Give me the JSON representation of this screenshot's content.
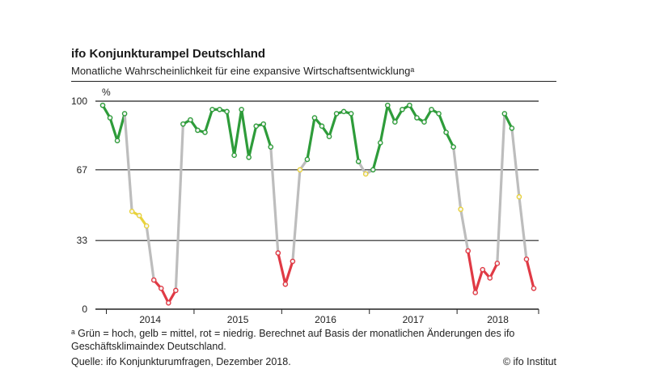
{
  "header": {
    "title": "ifo Konjunkturampel Deutschland",
    "subtitle": "Monatliche Wahrscheinlichkeit für eine expansive Wirtschaftsentwicklungᵃ"
  },
  "footer": {
    "footnote": "ᵃ Grün = hoch, gelb = mittel, rot = niedrig. Berechnet auf Basis der monatlichen Änderungen des ifo Geschäftsklimaindex Deutschland.",
    "source": "Quelle: ifo Konjunkturumfragen, Dezember 2018.",
    "copyright": "© ifo Institut"
  },
  "colors": {
    "green": "#2e9c3a",
    "yellow": "#e8d23c",
    "red": "#e03a45",
    "gray": "#bdbdbd"
  },
  "chart_data": {
    "type": "line",
    "title": "ifo Konjunkturampel Deutschland",
    "unit_label": "%",
    "ylim": [
      0,
      100
    ],
    "yticks": [
      0,
      33,
      67,
      100
    ],
    "x_range": [
      "2013-12",
      "2018-12"
    ],
    "year_labels": [
      "2014",
      "2015",
      "2016",
      "2017",
      "2018"
    ],
    "series": [
      {
        "name": "Wahrscheinlichkeit für eine expansive Wirtschaftsentwicklung",
        "values": [
          {
            "month": "2013-12",
            "value": 98,
            "level": "hoch"
          },
          {
            "month": "2014-01",
            "value": 92,
            "level": "hoch"
          },
          {
            "month": "2014-02",
            "value": 81,
            "level": "hoch"
          },
          {
            "month": "2014-03",
            "value": 94,
            "level": "hoch"
          },
          {
            "month": "2014-04",
            "value": 47,
            "level": "mittel"
          },
          {
            "month": "2014-05",
            "value": 45,
            "level": "mittel"
          },
          {
            "month": "2014-06",
            "value": 40,
            "level": "mittel"
          },
          {
            "month": "2014-07",
            "value": 14,
            "level": "niedrig"
          },
          {
            "month": "2014-08",
            "value": 10,
            "level": "niedrig"
          },
          {
            "month": "2014-09",
            "value": 3,
            "level": "niedrig"
          },
          {
            "month": "2014-10",
            "value": 9,
            "level": "niedrig"
          },
          {
            "month": "2014-11",
            "value": 89,
            "level": "hoch"
          },
          {
            "month": "2014-12",
            "value": 91,
            "level": "hoch"
          },
          {
            "month": "2015-01",
            "value": 86,
            "level": "hoch"
          },
          {
            "month": "2015-02",
            "value": 85,
            "level": "hoch"
          },
          {
            "month": "2015-03",
            "value": 96,
            "level": "hoch"
          },
          {
            "month": "2015-04",
            "value": 96,
            "level": "hoch"
          },
          {
            "month": "2015-05",
            "value": 95,
            "level": "hoch"
          },
          {
            "month": "2015-06",
            "value": 74,
            "level": "hoch"
          },
          {
            "month": "2015-07",
            "value": 96,
            "level": "hoch"
          },
          {
            "month": "2015-08",
            "value": 73,
            "level": "hoch"
          },
          {
            "month": "2015-09",
            "value": 88,
            "level": "hoch"
          },
          {
            "month": "2015-10",
            "value": 89,
            "level": "hoch"
          },
          {
            "month": "2015-11",
            "value": 78,
            "level": "hoch"
          },
          {
            "month": "2015-12",
            "value": 27,
            "level": "niedrig"
          },
          {
            "month": "2016-01",
            "value": 12,
            "level": "niedrig"
          },
          {
            "month": "2016-02",
            "value": 23,
            "level": "niedrig"
          },
          {
            "month": "2016-03",
            "value": 67,
            "level": "mittel"
          },
          {
            "month": "2016-04",
            "value": 72,
            "level": "hoch"
          },
          {
            "month": "2016-05",
            "value": 92,
            "level": "hoch"
          },
          {
            "month": "2016-06",
            "value": 88,
            "level": "hoch"
          },
          {
            "month": "2016-07",
            "value": 83,
            "level": "hoch"
          },
          {
            "month": "2016-08",
            "value": 94,
            "level": "hoch"
          },
          {
            "month": "2016-09",
            "value": 95,
            "level": "hoch"
          },
          {
            "month": "2016-10",
            "value": 94,
            "level": "hoch"
          },
          {
            "month": "2016-11",
            "value": 71,
            "level": "hoch"
          },
          {
            "month": "2016-12",
            "value": 65,
            "level": "mittel"
          },
          {
            "month": "2017-01",
            "value": 67,
            "level": "hoch"
          },
          {
            "month": "2017-02",
            "value": 80,
            "level": "hoch"
          },
          {
            "month": "2017-03",
            "value": 98,
            "level": "hoch"
          },
          {
            "month": "2017-04",
            "value": 90,
            "level": "hoch"
          },
          {
            "month": "2017-05",
            "value": 96,
            "level": "hoch"
          },
          {
            "month": "2017-06",
            "value": 98,
            "level": "hoch"
          },
          {
            "month": "2017-07",
            "value": 92,
            "level": "hoch"
          },
          {
            "month": "2017-08",
            "value": 90,
            "level": "hoch"
          },
          {
            "month": "2017-09",
            "value": 96,
            "level": "hoch"
          },
          {
            "month": "2017-10",
            "value": 94,
            "level": "hoch"
          },
          {
            "month": "2017-11",
            "value": 85,
            "level": "hoch"
          },
          {
            "month": "2017-12",
            "value": 78,
            "level": "hoch"
          },
          {
            "month": "2018-01",
            "value": 48,
            "level": "mittel"
          },
          {
            "month": "2018-02",
            "value": 28,
            "level": "niedrig"
          },
          {
            "month": "2018-03",
            "value": 8,
            "level": "niedrig"
          },
          {
            "month": "2018-04",
            "value": 19,
            "level": "niedrig"
          },
          {
            "month": "2018-05",
            "value": 15,
            "level": "niedrig"
          },
          {
            "month": "2018-06",
            "value": 22,
            "level": "niedrig"
          },
          {
            "month": "2018-07",
            "value": 94,
            "level": "hoch"
          },
          {
            "month": "2018-08",
            "value": 87,
            "level": "hoch"
          },
          {
            "month": "2018-09",
            "value": 54,
            "level": "mittel"
          },
          {
            "month": "2018-10",
            "value": 24,
            "level": "niedrig"
          },
          {
            "month": "2018-11",
            "value": 10,
            "level": "niedrig"
          }
        ]
      }
    ],
    "legend": "Grün = hoch, gelb = mittel, rot = niedrig"
  }
}
